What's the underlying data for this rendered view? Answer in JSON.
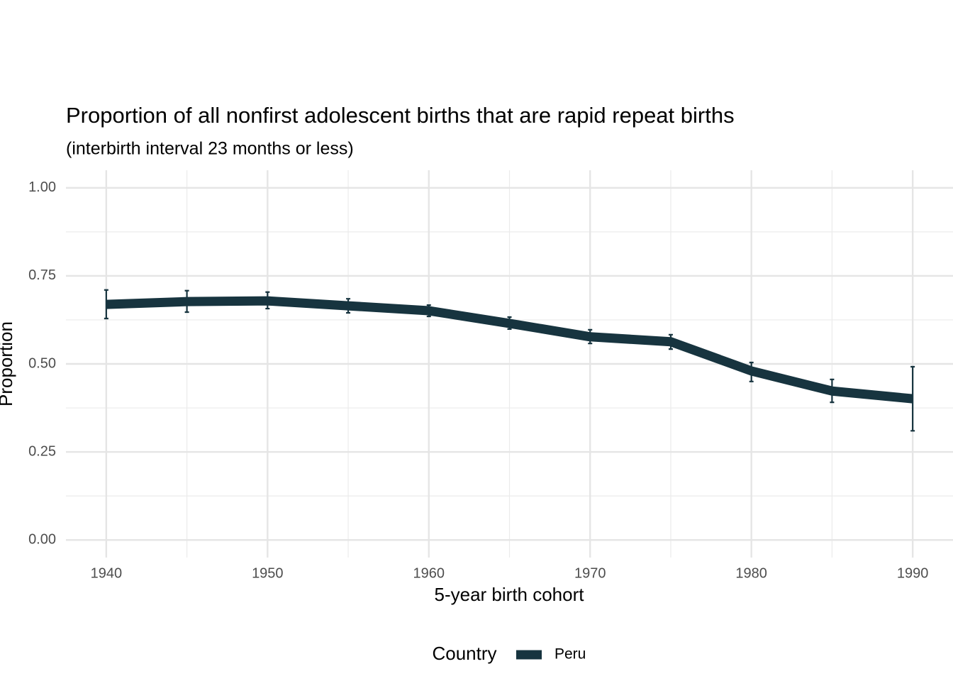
{
  "chart_data": {
    "type": "line",
    "title": "Proportion of all nonfirst adolescent births that are rapid repeat births",
    "subtitle": "(interbirth interval 23 months or less)",
    "x_label": "5-year birth cohort",
    "y_label": "Proportion",
    "legend_title": "Country",
    "x": [
      1940,
      1945,
      1950,
      1955,
      1960,
      1965,
      1970,
      1975,
      1980,
      1985,
      1990
    ],
    "series": [
      {
        "name": "Peru",
        "color": "#17343f",
        "values": [
          0.669,
          0.677,
          0.679,
          0.665,
          0.651,
          0.615,
          0.577,
          0.563,
          0.48,
          0.423,
          0.401
        ],
        "lower": [
          0.629,
          0.647,
          0.657,
          0.645,
          0.635,
          0.599,
          0.558,
          0.542,
          0.45,
          0.391,
          0.31
        ],
        "upper": [
          0.71,
          0.708,
          0.704,
          0.685,
          0.667,
          0.633,
          0.597,
          0.583,
          0.504,
          0.456,
          0.492
        ]
      }
    ],
    "xlim": [
      1937.5,
      1992.5
    ],
    "xticks": [
      1940,
      1950,
      1960,
      1970,
      1980,
      1990
    ],
    "minor_xticks": [
      1945,
      1955,
      1965,
      1975,
      1985
    ],
    "ylim": [
      -0.05,
      1.05
    ],
    "yticks": [
      {
        "value": 0,
        "label": "0.00"
      },
      {
        "value": 0.25,
        "label": "0.25"
      },
      {
        "value": 0.5,
        "label": "0.50"
      },
      {
        "value": 0.75,
        "label": "0.75"
      },
      {
        "value": 1,
        "label": "1.00"
      }
    ],
    "minor_yticks": [
      0.125,
      0.375,
      0.625,
      0.875
    ],
    "grid": true,
    "legend_position": "bottom"
  }
}
